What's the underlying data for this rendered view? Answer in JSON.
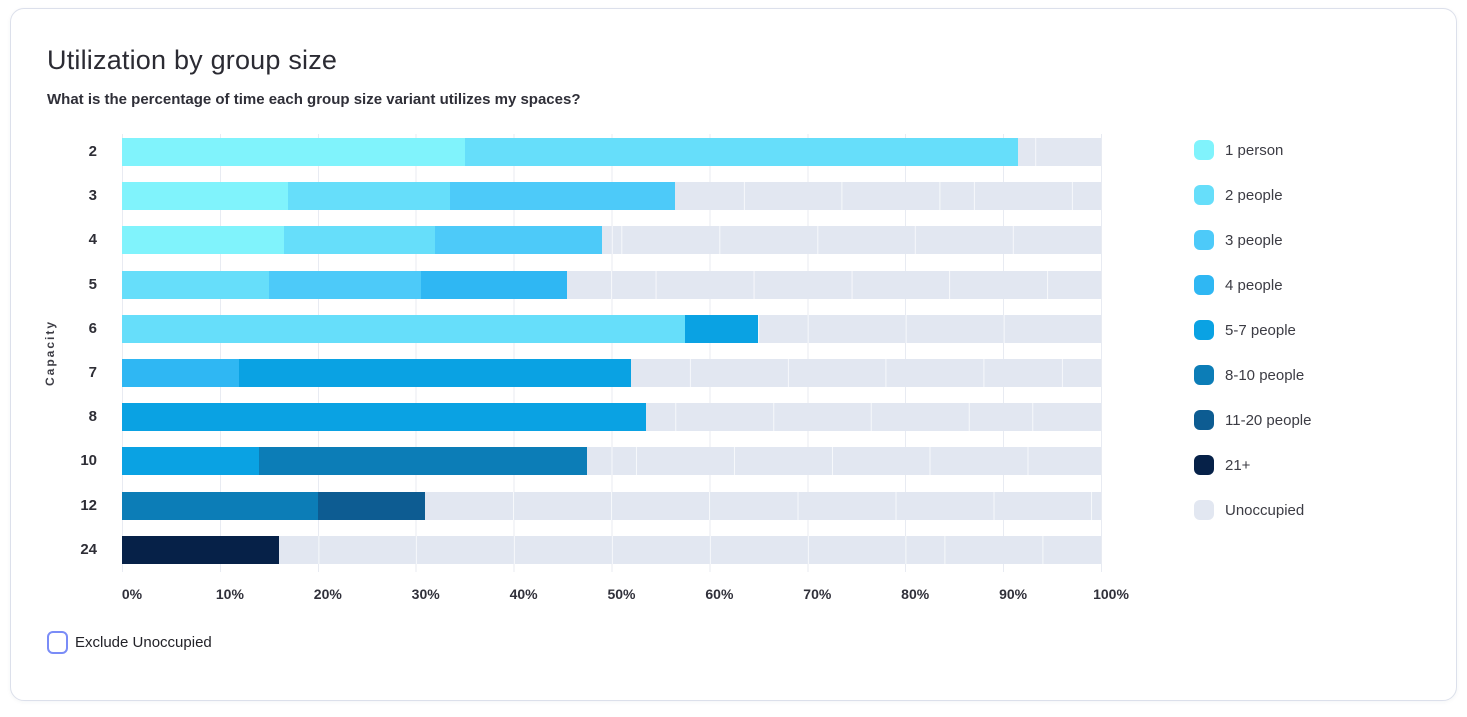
{
  "card": {
    "title": "Utilization by group size",
    "subtitle": "What is the percentage of time each group size variant utilizes my spaces?"
  },
  "controls": {
    "exclude_unoccupied_label": "Exclude Unoccupied",
    "exclude_unoccupied_checked": false,
    "checkbox_accent_color": "#7a8cf7"
  },
  "chart_data": {
    "type": "bar",
    "variant": "horizontal-stacked",
    "title": "Utilization by group size",
    "ylabel": "Capacity",
    "xlabel": "",
    "xlim": [
      0,
      100
    ],
    "x_ticks": [
      "0%",
      "10%",
      "20%",
      "30%",
      "40%",
      "50%",
      "60%",
      "70%",
      "80%",
      "90%",
      "100%"
    ],
    "grid": true,
    "legend_position": "right",
    "categories": [
      "2",
      "3",
      "4",
      "5",
      "6",
      "7",
      "8",
      "10",
      "12",
      "24"
    ],
    "legend": [
      {
        "label": "1 person",
        "color": "#80f3fc"
      },
      {
        "label": "2 people",
        "color": "#66defa"
      },
      {
        "label": "3 people",
        "color": "#4dcaf9"
      },
      {
        "label": "4 people",
        "color": "#2fb7f3"
      },
      {
        "label": "5-7 people",
        "color": "#0aa2e3"
      },
      {
        "label": "8-10 people",
        "color": "#0c7db7"
      },
      {
        "label": "11-20 people",
        "color": "#0d5c92"
      },
      {
        "label": "21+",
        "color": "#062148"
      },
      {
        "label": "Unoccupied",
        "color": "#e2e7f1"
      }
    ],
    "rows": [
      {
        "capacity": "2",
        "segments": [
          {
            "series": "1 person",
            "value": 35
          },
          {
            "series": "2 people",
            "value": 56.5
          },
          {
            "series": "Unoccupied",
            "value": 8.5
          }
        ]
      },
      {
        "capacity": "3",
        "segments": [
          {
            "series": "1 person",
            "value": 17
          },
          {
            "series": "2 people",
            "value": 16.5
          },
          {
            "series": "3 people",
            "value": 23
          },
          {
            "series": "Unoccupied",
            "value": 43.5
          }
        ]
      },
      {
        "capacity": "4",
        "segments": [
          {
            "series": "1 person",
            "value": 16.5
          },
          {
            "series": "2 people",
            "value": 15.5
          },
          {
            "series": "3 people",
            "value": 17
          },
          {
            "series": "Unoccupied",
            "value": 51
          }
        ]
      },
      {
        "capacity": "5",
        "segments": [
          {
            "series": "2 people",
            "value": 15
          },
          {
            "series": "3 people",
            "value": 15.5
          },
          {
            "series": "4 people",
            "value": 15
          },
          {
            "series": "Unoccupied",
            "value": 54.5
          }
        ]
      },
      {
        "capacity": "6",
        "segments": [
          {
            "series": "2 people",
            "value": 57.5
          },
          {
            "series": "5-7 people",
            "value": 7.5
          },
          {
            "series": "Unoccupied",
            "value": 35
          }
        ]
      },
      {
        "capacity": "7",
        "segments": [
          {
            "series": "4 people",
            "value": 12
          },
          {
            "series": "5-7 people",
            "value": 40
          },
          {
            "series": "Unoccupied",
            "value": 48
          }
        ]
      },
      {
        "capacity": "8",
        "segments": [
          {
            "series": "5-7 people",
            "value": 53.5
          },
          {
            "series": "Unoccupied",
            "value": 46.5
          }
        ]
      },
      {
        "capacity": "10",
        "segments": [
          {
            "series": "5-7 people",
            "value": 14
          },
          {
            "series": "8-10 people",
            "value": 33.5
          },
          {
            "series": "Unoccupied",
            "value": 52.5
          }
        ]
      },
      {
        "capacity": "12",
        "segments": [
          {
            "series": "8-10 people",
            "value": 20
          },
          {
            "series": "11-20 people",
            "value": 11
          },
          {
            "series": "Unoccupied",
            "value": 69
          }
        ]
      },
      {
        "capacity": "24",
        "segments": [
          {
            "series": "21+",
            "value": 16
          },
          {
            "series": "Unoccupied",
            "value": 84
          }
        ]
      }
    ]
  }
}
